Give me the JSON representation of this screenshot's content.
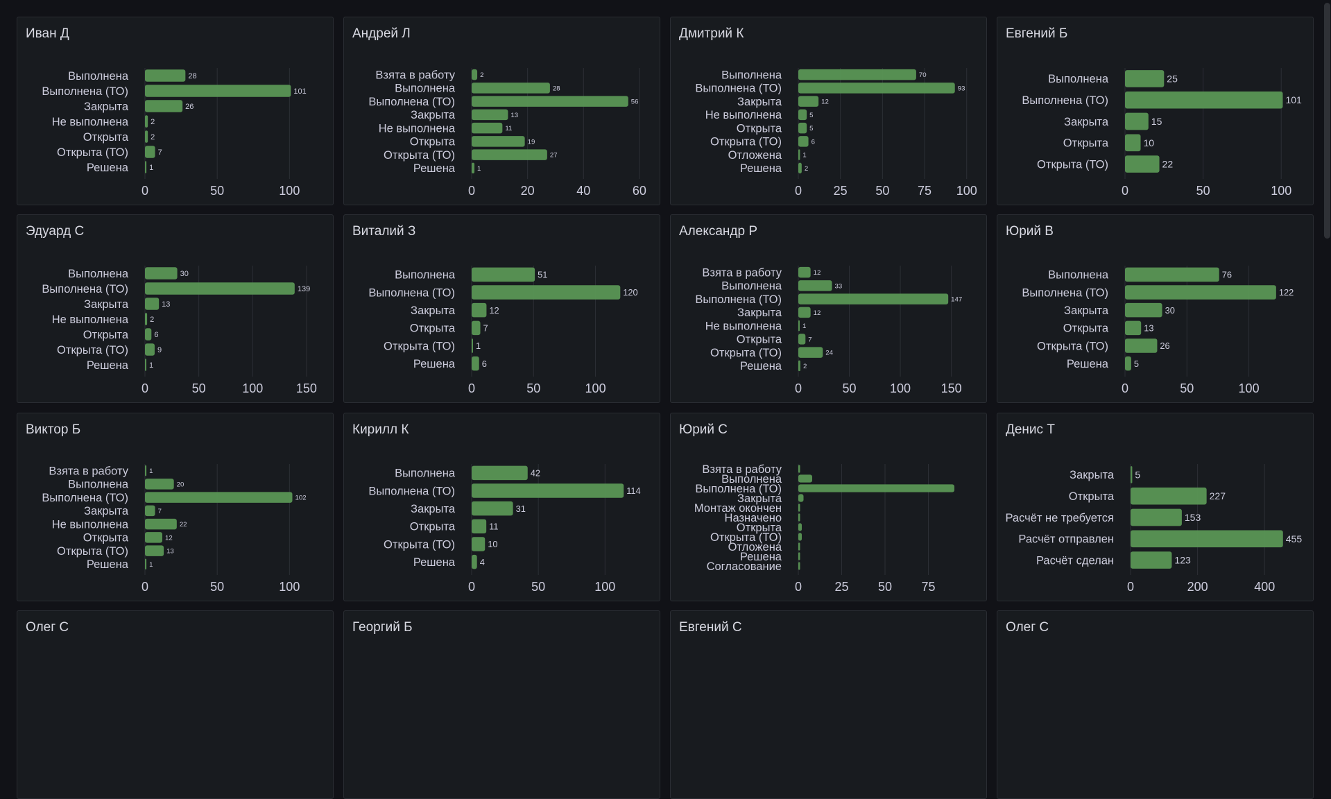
{
  "colors": {
    "background": "#111217",
    "panel": "#181b1f",
    "bar": "#5a9655",
    "text": "#ccccdc",
    "grid": "#2c2f35"
  },
  "chart_data": [
    {
      "type": "bar",
      "orientation": "horizontal",
      "title": "Иван Д",
      "categories": [
        "Выполнена",
        "Выполнена (ТО)",
        "Закрыта",
        "Не выполнена",
        "Открыта",
        "Открыта (ТО)",
        "Решена"
      ],
      "values": [
        28,
        101,
        26,
        2,
        2,
        7,
        1
      ],
      "show_values": true,
      "xlim": [
        0,
        120
      ],
      "ticks": [
        0,
        50,
        100
      ]
    },
    {
      "type": "bar",
      "orientation": "horizontal",
      "title": "Андрей Л",
      "categories": [
        "Взята в работу",
        "Выполнена",
        "Выполнена (ТО)",
        "Закрыта",
        "Не выполнена",
        "Открыта",
        "Открыта (ТО)",
        "Решена"
      ],
      "values": [
        2,
        28,
        56,
        13,
        11,
        19,
        27,
        1
      ],
      "show_values": true,
      "xlim": [
        0,
        62
      ],
      "ticks": [
        0,
        20,
        40,
        60
      ]
    },
    {
      "type": "bar",
      "orientation": "horizontal",
      "title": "Дмитрий К",
      "categories": [
        "Выполнена",
        "Выполнена (ТО)",
        "Закрыта",
        "Не выполнена",
        "Открыта",
        "Открыта (ТО)",
        "Отложена",
        "Решена"
      ],
      "values": [
        70,
        93,
        12,
        5,
        5,
        6,
        1,
        2
      ],
      "show_values": true,
      "xlim": [
        0,
        103
      ],
      "ticks": [
        0,
        25,
        50,
        75,
        100
      ]
    },
    {
      "type": "bar",
      "orientation": "horizontal",
      "title": "Евгений Б",
      "categories": [
        "Выполнена",
        "Выполнена (ТО)",
        "Закрыта",
        "Открыта",
        "Открыта (ТО)"
      ],
      "values": [
        25,
        101,
        15,
        10,
        22
      ],
      "show_values": true,
      "xlim": [
        0,
        111
      ],
      "ticks": [
        0,
        50,
        100
      ]
    },
    {
      "type": "bar",
      "orientation": "horizontal",
      "title": "Эдуард С",
      "categories": [
        "Выполнена",
        "Выполнена (ТО)",
        "Закрыта",
        "Не выполнена",
        "Открыта",
        "Открыта (ТО)",
        "Решена"
      ],
      "values": [
        30,
        139,
        13,
        2,
        6,
        9,
        1
      ],
      "show_values": true,
      "xlim": [
        0,
        161
      ],
      "ticks": [
        0,
        50,
        100,
        150
      ]
    },
    {
      "type": "bar",
      "orientation": "horizontal",
      "title": "Виталий З",
      "categories": [
        "Выполнена",
        "Выполнена (ТО)",
        "Закрыта",
        "Открыта",
        "Открыта (ТО)",
        "Решена"
      ],
      "values": [
        51,
        120,
        12,
        7,
        1,
        6
      ],
      "show_values": true,
      "xlim": [
        0,
        140
      ],
      "ticks": [
        0,
        50,
        100
      ]
    },
    {
      "type": "bar",
      "orientation": "horizontal",
      "title": "Александр Р",
      "categories": [
        "Взята в работу",
        "Выполнена",
        "Выполнена (ТО)",
        "Закрыта",
        "Не выполнена",
        "Открыта",
        "Открыта (ТО)",
        "Решена"
      ],
      "values": [
        12,
        33,
        147,
        12,
        1,
        7,
        24,
        2
      ],
      "show_values": true,
      "xlim": [
        0,
        170
      ],
      "ticks": [
        0,
        50,
        100,
        150
      ]
    },
    {
      "type": "bar",
      "orientation": "horizontal",
      "title": "Юрий В",
      "categories": [
        "Выполнена",
        "Выполнена (ТО)",
        "Закрыта",
        "Открыта",
        "Открыта (ТО)",
        "Решена"
      ],
      "values": [
        76,
        122,
        30,
        13,
        26,
        5
      ],
      "show_values": true,
      "xlim": [
        0,
        140
      ],
      "ticks": [
        0,
        50,
        100
      ]
    },
    {
      "type": "bar",
      "orientation": "horizontal",
      "title": "Виктор Б",
      "categories": [
        "Взята в работу",
        "Выполнена",
        "Выполнена (ТО)",
        "Закрыта",
        "Не выполнена",
        "Открыта",
        "Открыта (ТО)",
        "Решена"
      ],
      "values": [
        1,
        20,
        102,
        7,
        22,
        12,
        13,
        1
      ],
      "show_values": true,
      "xlim": [
        0,
        120
      ],
      "ticks": [
        0,
        50,
        100
      ]
    },
    {
      "type": "bar",
      "orientation": "horizontal",
      "title": "Кирилл К",
      "categories": [
        "Выполнена",
        "Выполнена (ТО)",
        "Закрыта",
        "Открыта",
        "Открыта (ТО)",
        "Решена"
      ],
      "values": [
        42,
        114,
        31,
        11,
        10,
        4
      ],
      "show_values": true,
      "xlim": [
        0,
        130
      ],
      "ticks": [
        0,
        50,
        100
      ]
    },
    {
      "type": "bar",
      "orientation": "horizontal",
      "title": "Юрий С",
      "categories": [
        "Взята в работу",
        "Выполнена",
        "Выполнена (ТО)",
        "Закрыта",
        "Монтаж окончен",
        "Назначено",
        "Открыта",
        "Открыта (ТО)",
        "Отложена",
        "Решена",
        "Согласование"
      ],
      "values": [
        1,
        8,
        90,
        3,
        1,
        1,
        2,
        2,
        1,
        1,
        1
      ],
      "show_values": false,
      "xlim": [
        0,
        100
      ],
      "ticks": [
        0,
        25,
        50,
        75
      ]
    },
    {
      "type": "bar",
      "orientation": "horizontal",
      "title": "Денис Т",
      "categories": [
        "Закрыта",
        "Открыта",
        "Расчёт не требуется",
        "Расчёт отправлен",
        "Расчёт сделан"
      ],
      "values": [
        5,
        227,
        153,
        455,
        123
      ],
      "show_values": true,
      "xlim": [
        0,
        501
      ],
      "ticks": [
        0,
        200,
        400
      ]
    },
    {
      "type": "bar",
      "orientation": "horizontal",
      "title": "Олег С",
      "categories": [],
      "values": [],
      "show_values": true,
      "xlim": [
        0,
        1
      ],
      "ticks": []
    },
    {
      "type": "bar",
      "orientation": "horizontal",
      "title": "Георгий Б",
      "categories": [],
      "values": [],
      "show_values": true,
      "xlim": [
        0,
        1
      ],
      "ticks": []
    },
    {
      "type": "bar",
      "orientation": "horizontal",
      "title": "Евгений С",
      "categories": [],
      "values": [],
      "show_values": true,
      "xlim": [
        0,
        1
      ],
      "ticks": []
    },
    {
      "type": "bar",
      "orientation": "horizontal",
      "title": "Олег С",
      "categories": [],
      "values": [],
      "show_values": true,
      "xlim": [
        0,
        1
      ],
      "ticks": []
    }
  ]
}
